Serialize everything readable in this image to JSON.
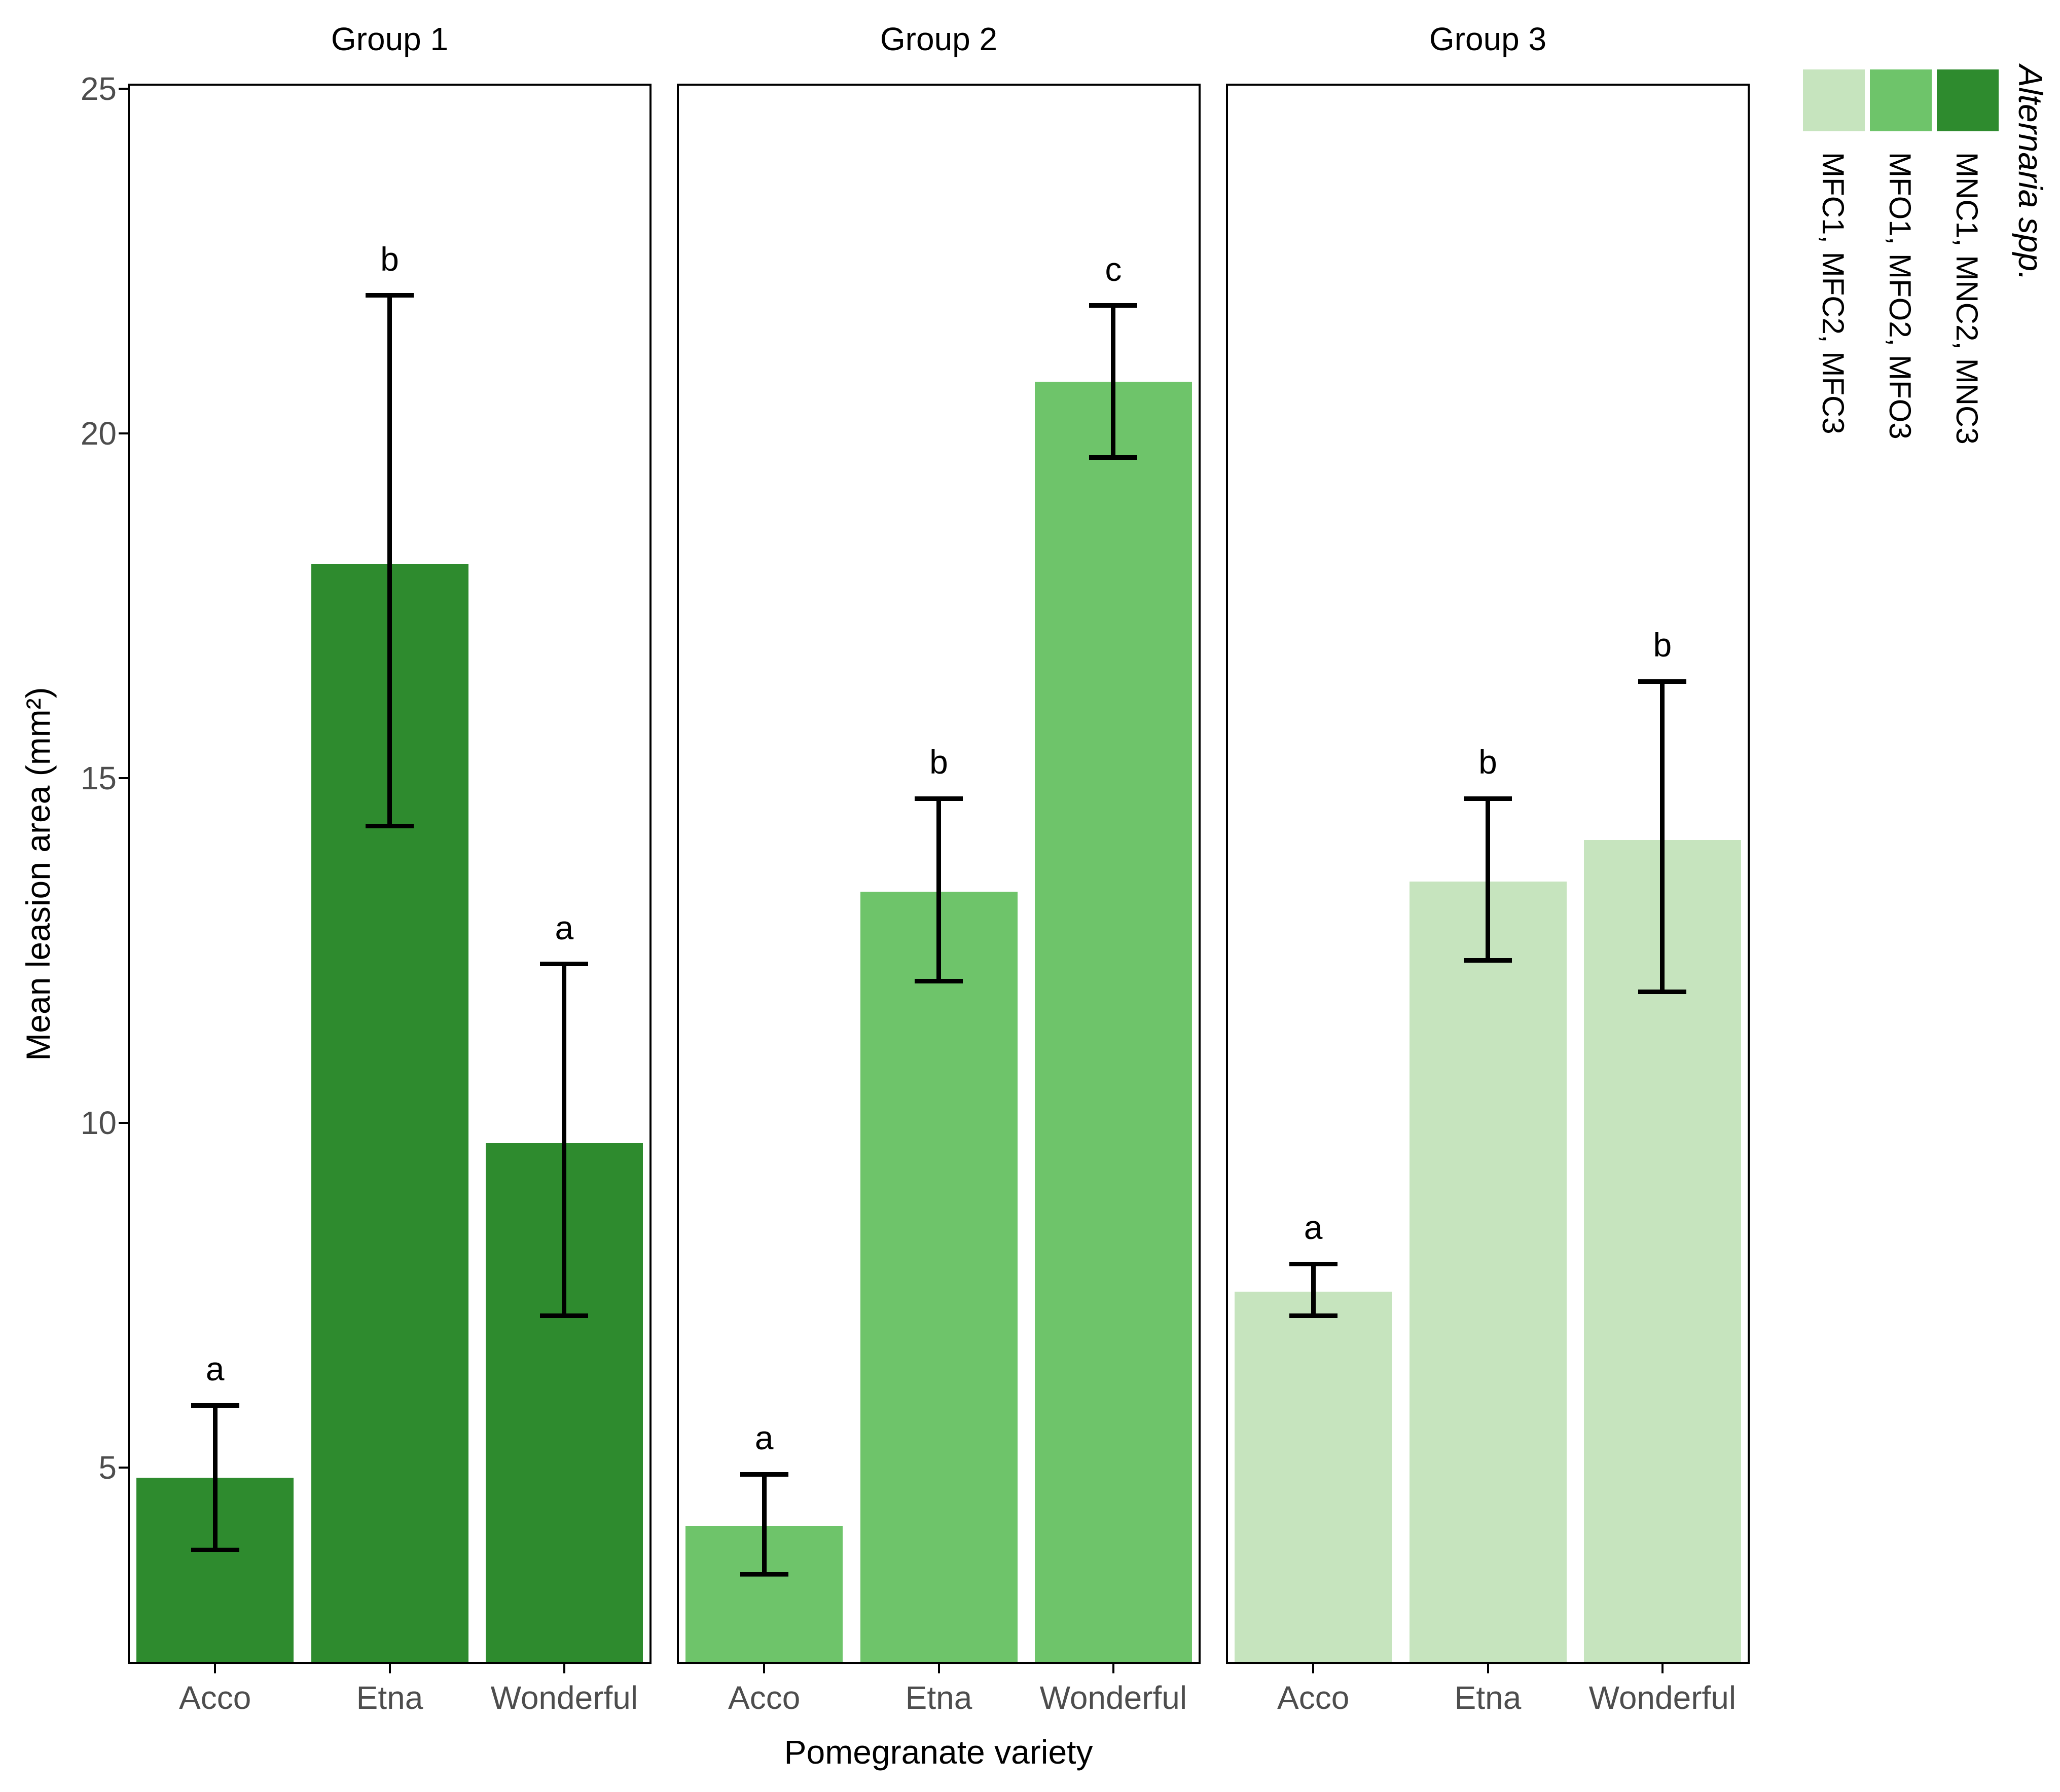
{
  "chart_data": {
    "type": "bar",
    "title": "",
    "xlabel": "Pomegranate variety",
    "ylabel": "Mean leasion area (mm²)",
    "categories": [
      "Acco",
      "Etna",
      "Wonderful"
    ],
    "y_ticks": [
      5,
      10,
      15,
      20,
      25
    ],
    "ylim": [
      2.1,
      25.1
    ],
    "grid": false,
    "legend": {
      "title": "Alternaria spp.",
      "title_italic": true,
      "position": "right",
      "orientation": "rotated-90",
      "items": [
        {
          "label": "MFC1, MFC2, MFC3",
          "color": "#C6E4BE"
        },
        {
          "label": "MFO1, MFO2, MFO3",
          "color": "#6EC46A"
        },
        {
          "label": "MNC1, MNC2, MNC3",
          "color": "#2E8B2E"
        }
      ]
    },
    "panels": [
      {
        "title": "Group 1",
        "fill": "#2E8B2E",
        "legend_item": "MNC1, MNC2, MNC3",
        "bars": [
          {
            "category": "Acco",
            "mean": 4.85,
            "ci_low": 3.8,
            "ci_high": 5.9,
            "letter": "a"
          },
          {
            "category": "Etna",
            "mean": 18.1,
            "ci_low": 14.3,
            "ci_high": 22.0,
            "letter": "b"
          },
          {
            "category": "Wonderful",
            "mean": 9.7,
            "ci_low": 7.2,
            "ci_high": 12.3,
            "letter": "a"
          }
        ]
      },
      {
        "title": "Group 2",
        "fill": "#6EC46A",
        "legend_item": "MFO1, MFO2, MFO3",
        "bars": [
          {
            "category": "Acco",
            "mean": 4.15,
            "ci_low": 3.45,
            "ci_high": 4.9,
            "letter": "a"
          },
          {
            "category": "Etna",
            "mean": 13.35,
            "ci_low": 12.05,
            "ci_high": 14.7,
            "letter": "b"
          },
          {
            "category": "Wonderful",
            "mean": 20.75,
            "ci_low": 19.65,
            "ci_high": 21.85,
            "letter": "c"
          }
        ]
      },
      {
        "title": "Group 3",
        "fill": "#C6E4BE",
        "legend_item": "MFC1, MFC2, MFC3",
        "bars": [
          {
            "category": "Acco",
            "mean": 7.55,
            "ci_low": 7.2,
            "ci_high": 7.95,
            "letter": "a"
          },
          {
            "category": "Etna",
            "mean": 13.5,
            "ci_low": 12.35,
            "ci_high": 14.7,
            "letter": "b"
          },
          {
            "category": "Wonderful",
            "mean": 14.1,
            "ci_low": 11.9,
            "ci_high": 16.4,
            "letter": "b"
          }
        ]
      }
    ],
    "colors": {
      "axis_text": "#4D4D4D",
      "axis_title": "#000000",
      "panel_border": "#000000",
      "error_bar": "#000000",
      "background": "#FFFFFF"
    }
  }
}
